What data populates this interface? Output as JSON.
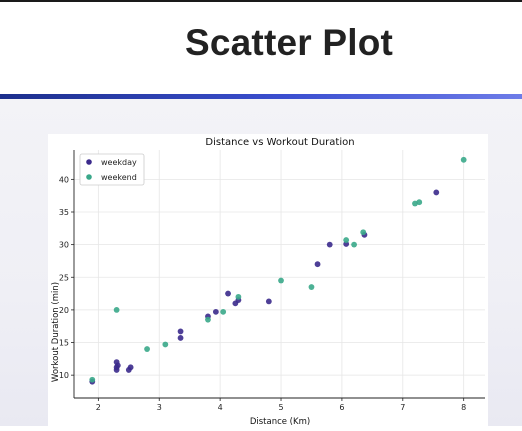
{
  "slide": {
    "title": "Scatter Plot"
  },
  "colors": {
    "weekday": "#3b2a8c",
    "weekend": "#3aa88a",
    "accent": "#2a3fb8"
  },
  "chart_data": {
    "type": "scatter",
    "title": "Distance vs Workout Duration",
    "xlabel": "Distance (Km)",
    "ylabel": "Workout Duration (min)",
    "xlim": [
      1.6,
      8.35
    ],
    "ylim": [
      6.5,
      44.5
    ],
    "xticks": [
      2,
      3,
      4,
      5,
      6,
      7,
      8
    ],
    "yticks": [
      10,
      15,
      20,
      25,
      30,
      35,
      40
    ],
    "grid": true,
    "legend": {
      "position": "top-left"
    },
    "series": [
      {
        "name": "weekday",
        "color": "#3b2a8c",
        "points": [
          [
            1.9,
            9.0
          ],
          [
            2.3,
            12.0
          ],
          [
            2.3,
            11.2
          ],
          [
            2.3,
            10.8
          ],
          [
            2.32,
            11.5
          ],
          [
            2.5,
            10.8
          ],
          [
            2.53,
            11.2
          ],
          [
            3.35,
            16.7
          ],
          [
            3.35,
            15.7
          ],
          [
            3.8,
            19.0
          ],
          [
            3.93,
            19.7
          ],
          [
            4.13,
            22.5
          ],
          [
            4.25,
            21.0
          ],
          [
            4.3,
            21.5
          ],
          [
            4.8,
            21.3
          ],
          [
            5.6,
            27.0
          ],
          [
            5.8,
            30.0
          ],
          [
            6.07,
            30.1
          ],
          [
            6.37,
            31.5
          ],
          [
            7.55,
            38.0
          ]
        ]
      },
      {
        "name": "weekend",
        "color": "#3aa88a",
        "points": [
          [
            1.9,
            9.3
          ],
          [
            2.3,
            20.0
          ],
          [
            2.8,
            14.0
          ],
          [
            3.1,
            14.7
          ],
          [
            3.8,
            18.5
          ],
          [
            4.05,
            19.7
          ],
          [
            4.3,
            22.0
          ],
          [
            5.0,
            24.5
          ],
          [
            5.5,
            23.5
          ],
          [
            6.07,
            30.7
          ],
          [
            6.2,
            30.0
          ],
          [
            6.35,
            31.9
          ],
          [
            7.2,
            36.3
          ],
          [
            7.27,
            36.5
          ],
          [
            8.0,
            43.0
          ]
        ]
      }
    ]
  }
}
